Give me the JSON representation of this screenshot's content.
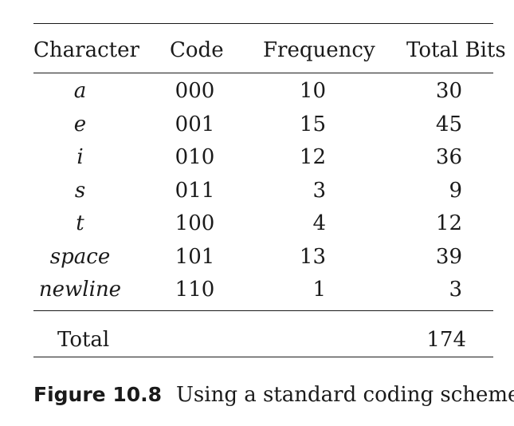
{
  "table": {
    "headers": {
      "character": "Character",
      "code": "Code",
      "frequency": "Frequency",
      "total_bits": "Total Bits"
    },
    "rows": [
      {
        "character": "a",
        "code": "000",
        "frequency": "10",
        "total_bits": "30"
      },
      {
        "character": "e",
        "code": "001",
        "frequency": "15",
        "total_bits": "45"
      },
      {
        "character": "i",
        "code": "010",
        "frequency": "12",
        "total_bits": "36"
      },
      {
        "character": "s",
        "code": "011",
        "frequency": "3",
        "total_bits": "9"
      },
      {
        "character": "t",
        "code": "100",
        "frequency": "4",
        "total_bits": "12"
      },
      {
        "character": "space",
        "code": "101",
        "frequency": "13",
        "total_bits": "39"
      },
      {
        "character": "newline",
        "code": "110",
        "frequency": "1",
        "total_bits": "3"
      }
    ],
    "total": {
      "label": "Total",
      "total_bits": "174"
    }
  },
  "caption": {
    "label": "Figure 10.8",
    "text": "Using a standard coding scheme"
  }
}
